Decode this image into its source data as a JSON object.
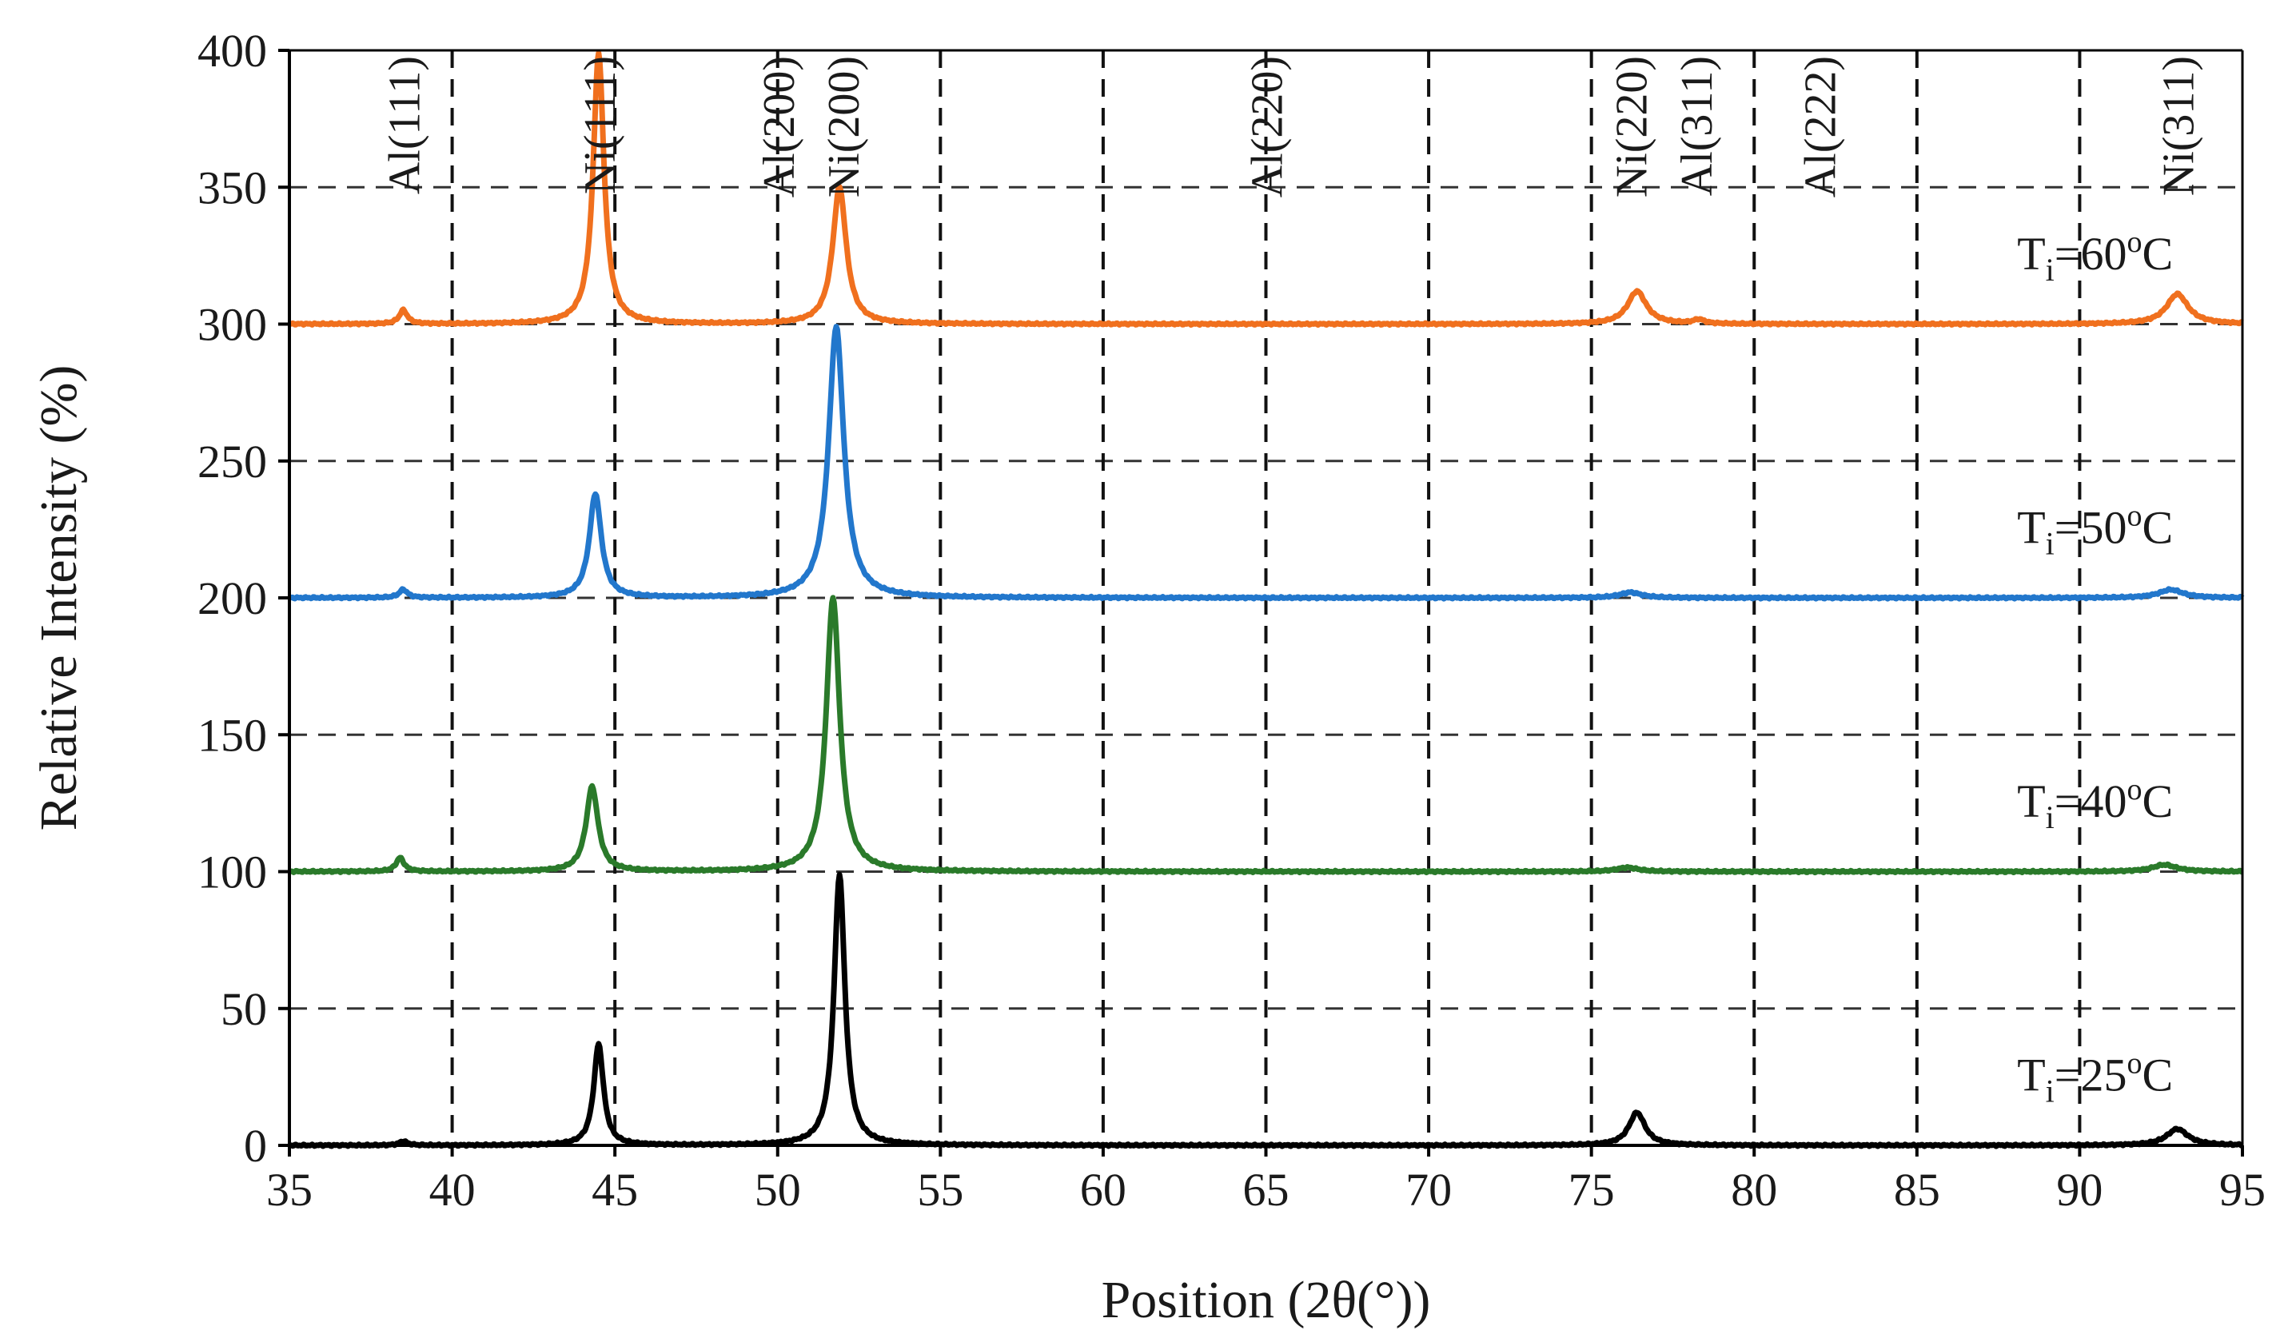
{
  "chart_data": {
    "type": "line",
    "title": "",
    "xlabel": "Position (2θ(°))",
    "ylabel": "Relative  Intensity (%)",
    "xlim": [
      35,
      95
    ],
    "ylim": [
      0,
      400
    ],
    "x_ticks": [
      35,
      40,
      45,
      50,
      55,
      60,
      65,
      70,
      75,
      80,
      85,
      90,
      95
    ],
    "y_ticks": [
      0,
      50,
      100,
      150,
      200,
      250,
      300,
      350,
      400
    ],
    "grid": "dashed",
    "peak_labels": [
      {
        "text": "Al(111)",
        "x": 38.5
      },
      {
        "text": "Ni(111)",
        "x": 44.5
      },
      {
        "text": "Al(200)",
        "x": 50.0
      },
      {
        "text": "Ni(200)",
        "x": 52.0
      },
      {
        "text": "Al(220)",
        "x": 65.0
      },
      {
        "text": "Ni(220)",
        "x": 76.2
      },
      {
        "text": "Al(311)",
        "x": 78.2
      },
      {
        "text": "Al(222)",
        "x": 82.0
      },
      {
        "text": "Ni(311)",
        "x": 93.0
      }
    ],
    "series": [
      {
        "name": "T=60°C",
        "label_main": "T",
        "label_sub": "i",
        "label_value": "=60",
        "label_sup": "o",
        "label_unit": "C",
        "label_x": 89.0,
        "label_y": 320,
        "color": "#f0701e",
        "baseline": 300,
        "peaks": [
          {
            "x": 38.5,
            "h": 5,
            "w": 0.15
          },
          {
            "x": 44.5,
            "h": 99,
            "w": 0.2
          },
          {
            "x": 51.9,
            "h": 50,
            "w": 0.25
          },
          {
            "x": 76.4,
            "h": 12,
            "w": 0.35
          },
          {
            "x": 78.3,
            "h": 1.5,
            "w": 0.2
          },
          {
            "x": 93.0,
            "h": 11,
            "w": 0.4
          }
        ]
      },
      {
        "name": "T=50°C",
        "label_main": "T",
        "label_sub": "i",
        "label_value": "=50",
        "label_sup": "o",
        "label_unit": "C",
        "label_x": 89.0,
        "label_y": 220,
        "color": "#2277cc",
        "baseline": 200,
        "peaks": [
          {
            "x": 38.5,
            "h": 3,
            "w": 0.15
          },
          {
            "x": 44.4,
            "h": 38,
            "w": 0.22
          },
          {
            "x": 51.8,
            "h": 99,
            "w": 0.28
          },
          {
            "x": 76.2,
            "h": 2,
            "w": 0.4
          },
          {
            "x": 92.8,
            "h": 3,
            "w": 0.45
          }
        ]
      },
      {
        "name": "T=40°C",
        "label_main": "T",
        "label_sub": "i",
        "label_value": "=40",
        "label_sup": "o",
        "label_unit": "C",
        "label_x": 89.0,
        "label_y": 120,
        "color": "#2a7a2a",
        "baseline": 100,
        "peaks": [
          {
            "x": 38.4,
            "h": 5,
            "w": 0.15
          },
          {
            "x": 44.3,
            "h": 31,
            "w": 0.22
          },
          {
            "x": 51.7,
            "h": 100,
            "w": 0.25
          },
          {
            "x": 76.1,
            "h": 1.5,
            "w": 0.4
          },
          {
            "x": 92.6,
            "h": 2.5,
            "w": 0.45
          }
        ]
      },
      {
        "name": "T=25°C",
        "label_main": "T",
        "label_sub": "i",
        "label_value": "=25",
        "label_sup": "o",
        "label_unit": "C",
        "label_x": 89.0,
        "label_y": 20,
        "color": "#000000",
        "baseline": 0,
        "peaks": [
          {
            "x": 38.5,
            "h": 1.5,
            "w": 0.15
          },
          {
            "x": 44.5,
            "h": 37,
            "w": 0.18
          },
          {
            "x": 51.9,
            "h": 99,
            "w": 0.2
          },
          {
            "x": 76.4,
            "h": 12,
            "w": 0.3
          },
          {
            "x": 93.0,
            "h": 6,
            "w": 0.4
          }
        ]
      }
    ]
  }
}
